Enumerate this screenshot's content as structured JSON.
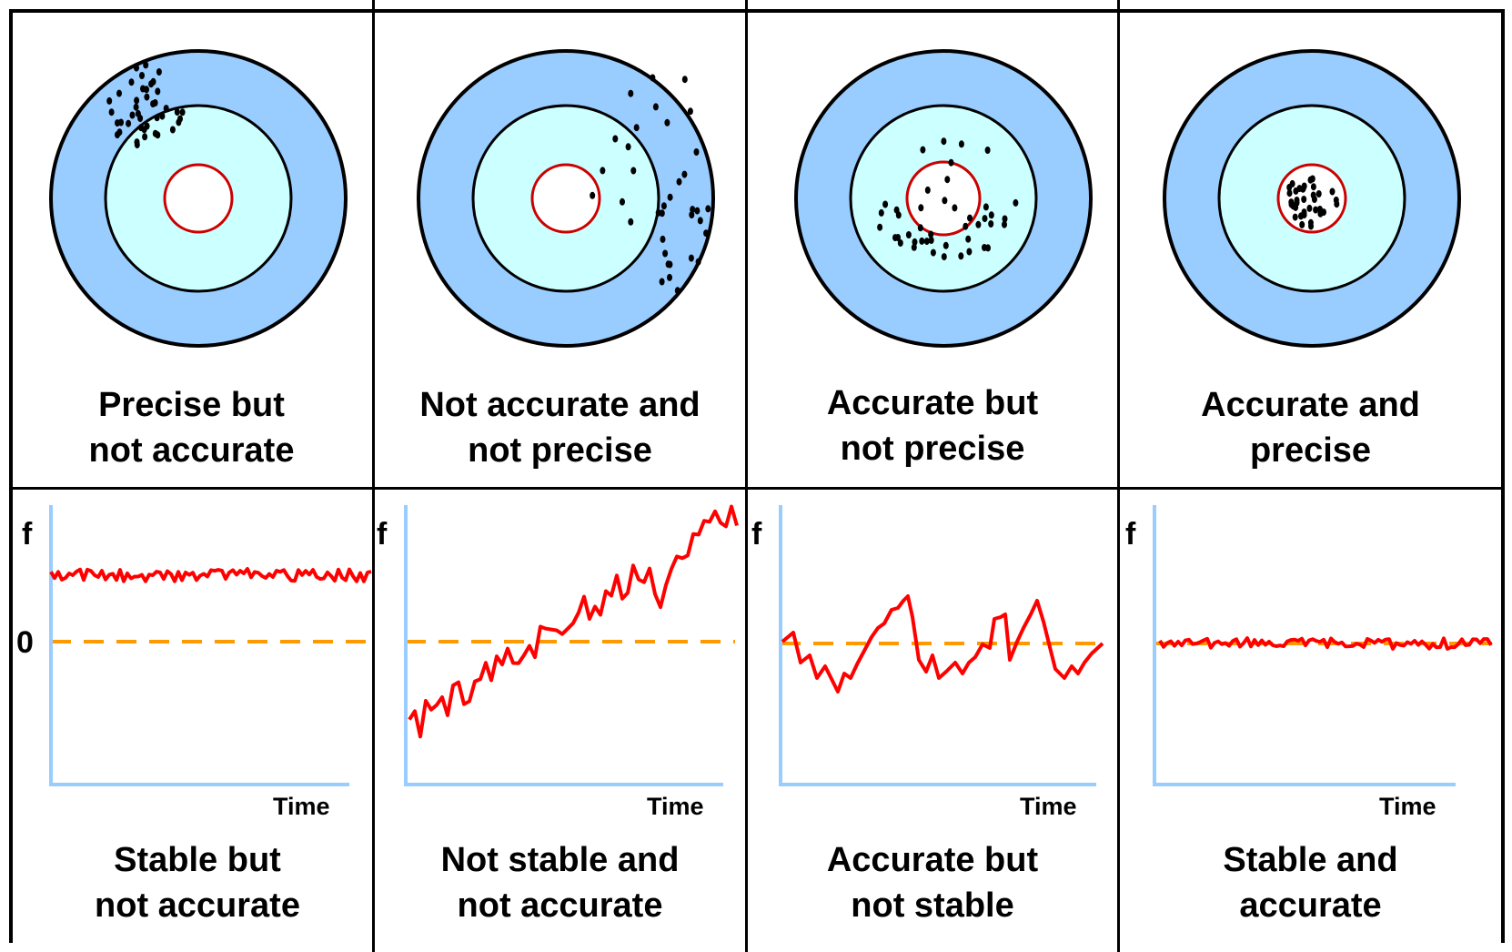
{
  "colors": {
    "outer_ring": "#99ccff",
    "inner_ring": "#ccffff",
    "bullseye_border": "#cc0000",
    "signal_line": "#ff0000",
    "reference_line": "#ff9900",
    "axis_line": "#99ccff"
  },
  "targets": [
    {
      "caption": [
        "Precise but",
        "not accurate"
      ]
    },
    {
      "caption": [
        "Not accurate and",
        "not precise"
      ]
    },
    {
      "caption": [
        "Accurate but",
        "not precise"
      ]
    },
    {
      "caption": [
        "Accurate and",
        "precise"
      ]
    }
  ],
  "plots": [
    {
      "y_label": "f",
      "zero_label": "0",
      "x_label": "Time",
      "caption": [
        "Stable but",
        "not accurate"
      ]
    },
    {
      "y_label": "f",
      "x_label": "Time",
      "caption": [
        "Not stable and",
        "not accurate"
      ]
    },
    {
      "y_label": "f",
      "x_label": "Time",
      "caption": [
        "Accurate but",
        "not stable"
      ]
    },
    {
      "y_label": "f",
      "x_label": "Time",
      "caption": [
        "Stable and",
        "accurate"
      ]
    }
  ]
}
